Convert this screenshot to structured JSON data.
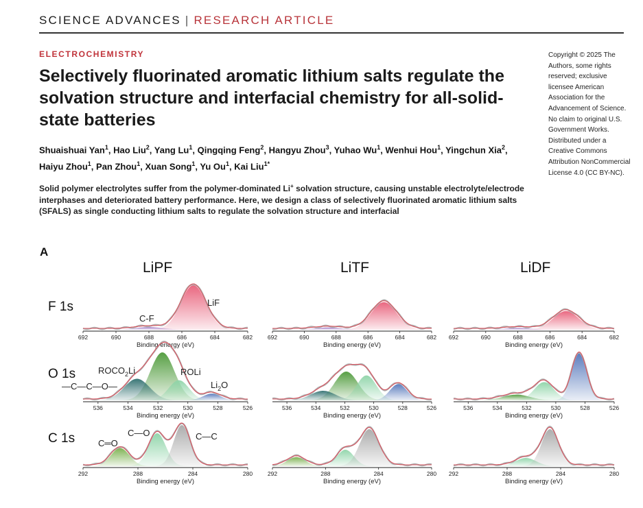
{
  "header": {
    "journal": "SCIENCE ADVANCES",
    "separator": "|",
    "type": "RESEARCH ARTICLE"
  },
  "section": "ELECTROCHEMISTRY",
  "title": "Selectively fluorinated aromatic lithium salts regulate the solvation structure and interfacial chemistry for all-solid-state batteries",
  "authors": [
    {
      "name": "Shuaishuai Yan",
      "aff": "1"
    },
    {
      "name": "Hao Liu",
      "aff": "2"
    },
    {
      "name": "Yang Lu",
      "aff": "1"
    },
    {
      "name": "Qingqing Feng",
      "aff": "2"
    },
    {
      "name": "Hangyu Zhou",
      "aff": "3"
    },
    {
      "name": "Yuhao Wu",
      "aff": "1"
    },
    {
      "name": "Wenhui Hou",
      "aff": "1"
    },
    {
      "name": "Yingchun Xia",
      "aff": "2"
    },
    {
      "name": "Haiyu Zhou",
      "aff": "1"
    },
    {
      "name": "Pan Zhou",
      "aff": "1"
    },
    {
      "name": "Xuan Song",
      "aff": "1"
    },
    {
      "name": "Yu Ou",
      "aff": "1"
    },
    {
      "name": "Kai Liu",
      "aff": "1*"
    }
  ],
  "abstract": {
    "part1": "Solid polymer electrolytes suffer from the polymer-dominated Li",
    "sup": "+",
    "part2": " solvation structure, causing unstable electrolyte/electrode interphases and deteriorated battery performance. Here, we design a class of selectively fluorinated aromatic lithium salts (SFALS) as single conducting lithium salts to regulate the solvation structure and interfacial"
  },
  "copyright": "Copyright © 2025 The Authors, some rights reserved; exclusive licensee American Association for the Advancement of Science. No claim to original U.S. Government Works. Distributed under a Creative Commons Attribution NonCommercial License 4.0 (CC BY-NC).",
  "figure": {
    "panel": "A",
    "columns": [
      "LiPF",
      "LiTF",
      "LiDF"
    ],
    "rows": [
      "F 1s",
      "O 1s",
      "C 1s"
    ],
    "xlabel": "Binding energy (eV)",
    "annotations": {
      "cf": "C-F",
      "lif": "LiF",
      "roco2li_a": "ROCO",
      "roco2li_sub": "2",
      "roco2li_b": "Li",
      "roli": "ROLi",
      "li2o_a": "Li",
      "li2o_sub": "2",
      "li2o_b": "O",
      "ester_frag": "—C—C—O—",
      "co": "C—O",
      "cdo": "C═O",
      "cc": "C—C"
    },
    "colors": {
      "fit": "#d9525e",
      "raw": "#b0b0b0",
      "lif": "#e8607a",
      "cf": "#9b74c2",
      "roco2li": "#4e9a3a",
      "roli": "#8ed4a8",
      "li2o": "#5577bb",
      "oc": "#2f6f6f",
      "cc": "#a9a9a9",
      "co": "#8ed4a8",
      "cdo": "#79b04c"
    },
    "chart_data": [
      {
        "type": "line",
        "row": "F 1s",
        "column": "LiPF",
        "xlim": [
          692,
          682
        ],
        "xticks": [
          692,
          690,
          688,
          686,
          684,
          682
        ],
        "series": [
          {
            "name": "LiF",
            "center": 685.3,
            "fwhm": 1.8,
            "height": 1.0
          },
          {
            "name": "C-F",
            "center": 688.0,
            "fwhm": 2.0,
            "height": 0.06
          }
        ]
      },
      {
        "type": "line",
        "row": "F 1s",
        "column": "LiTF",
        "xlim": [
          692,
          682
        ],
        "xticks": [
          692,
          690,
          688,
          686,
          684,
          682
        ],
        "series": [
          {
            "center": 685.0,
            "fwhm": 1.9,
            "height": 0.62
          },
          {
            "center": 688.5,
            "fwhm": 2.0,
            "height": 0.05
          }
        ]
      },
      {
        "type": "line",
        "row": "F 1s",
        "column": "LiDF",
        "xlim": [
          692,
          682
        ],
        "xticks": [
          692,
          690,
          688,
          686,
          684,
          682
        ],
        "series": [
          {
            "center": 685.0,
            "fwhm": 1.9,
            "height": 0.42
          },
          {
            "center": 688.0,
            "fwhm": 2.0,
            "height": 0.04
          }
        ]
      },
      {
        "type": "line",
        "row": "O 1s",
        "column": "LiPF",
        "xlim": [
          537,
          526
        ],
        "xticks": [
          536,
          534,
          532,
          530,
          528,
          526
        ],
        "series": [
          {
            "name": "ROCO2Li",
            "center": 531.7,
            "fwhm": 1.9,
            "height": 1.0
          },
          {
            "name": "—C—C—O—",
            "center": 533.4,
            "fwhm": 2.0,
            "height": 0.45
          },
          {
            "name": "ROLi",
            "center": 530.6,
            "fwhm": 1.6,
            "height": 0.42
          },
          {
            "name": "Li2O",
            "center": 528.4,
            "fwhm": 1.4,
            "height": 0.14
          }
        ]
      },
      {
        "type": "line",
        "row": "O 1s",
        "column": "LiTF",
        "xlim": [
          537,
          526
        ],
        "xticks": [
          536,
          534,
          532,
          530,
          528,
          526
        ],
        "series": [
          {
            "center": 531.9,
            "fwhm": 1.9,
            "height": 0.6
          },
          {
            "center": 533.5,
            "fwhm": 2.0,
            "height": 0.2
          },
          {
            "center": 530.5,
            "fwhm": 1.6,
            "height": 0.52
          },
          {
            "center": 528.3,
            "fwhm": 1.4,
            "height": 0.34
          }
        ]
      },
      {
        "type": "line",
        "row": "O 1s",
        "column": "LiDF",
        "xlim": [
          537,
          526
        ],
        "xticks": [
          536,
          534,
          532,
          530,
          528,
          526
        ],
        "series": [
          {
            "center": 532.7,
            "fwhm": 2.2,
            "height": 0.12
          },
          {
            "center": 530.8,
            "fwhm": 1.6,
            "height": 0.38
          },
          {
            "center": 528.4,
            "fwhm": 1.2,
            "height": 0.98
          }
        ]
      },
      {
        "type": "line",
        "row": "C 1s",
        "column": "LiPF",
        "xlim": [
          292,
          280
        ],
        "xticks": [
          292,
          288,
          284,
          280
        ],
        "series": [
          {
            "name": "C═O",
            "center": 289.3,
            "fwhm": 1.6,
            "height": 0.44
          },
          {
            "name": "C—O",
            "center": 286.6,
            "fwhm": 1.5,
            "height": 0.8
          },
          {
            "name": "C—C",
            "center": 284.8,
            "fwhm": 1.4,
            "height": 1.0
          }
        ]
      },
      {
        "type": "line",
        "row": "C 1s",
        "column": "LiTF",
        "xlim": [
          292,
          280
        ],
        "xticks": [
          292,
          288,
          284,
          280
        ],
        "series": [
          {
            "center": 290.2,
            "fwhm": 1.6,
            "height": 0.22
          },
          {
            "center": 286.5,
            "fwhm": 1.5,
            "height": 0.4
          },
          {
            "center": 284.7,
            "fwhm": 1.7,
            "height": 0.9
          }
        ]
      },
      {
        "type": "line",
        "row": "C 1s",
        "column": "LiDF",
        "xlim": [
          292,
          280
        ],
        "xticks": [
          292,
          288,
          284,
          280
        ],
        "series": [
          {
            "center": 286.6,
            "fwhm": 1.8,
            "height": 0.2
          },
          {
            "center": 284.8,
            "fwhm": 1.5,
            "height": 0.9
          }
        ]
      }
    ]
  }
}
